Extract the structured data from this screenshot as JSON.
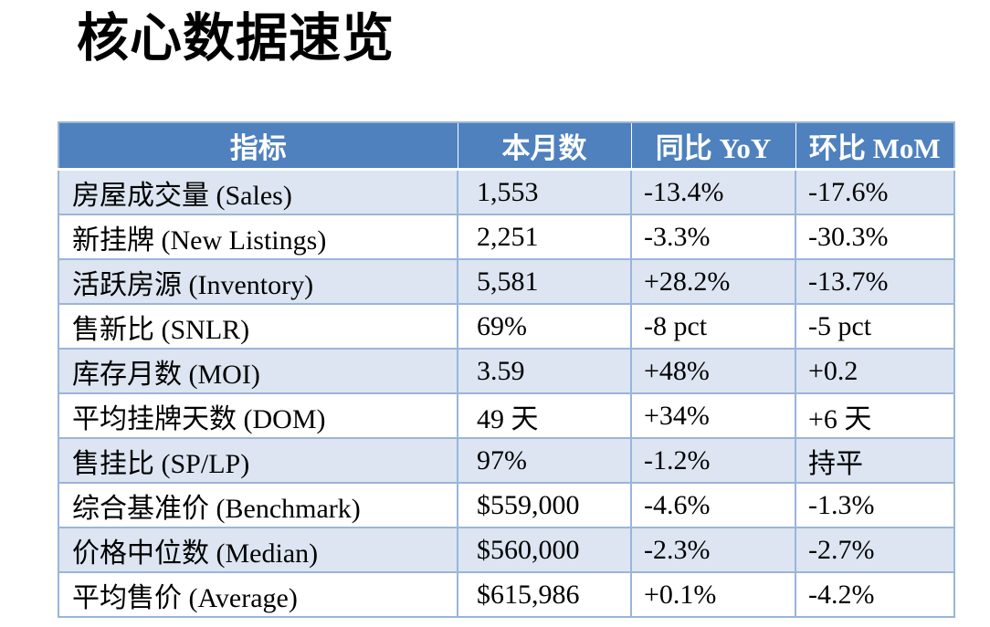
{
  "page": {
    "title": "核心数据速览"
  },
  "colors": {
    "header_bg": "#4E81BD",
    "header_text": "#FFFFFF",
    "band_bg": "#DCE5F1",
    "row_bg": "#FFFFFF",
    "border": "#9AB5DA",
    "text": "#000000"
  },
  "table": {
    "columns": [
      {
        "key": "indicator",
        "label": "指标"
      },
      {
        "key": "current",
        "label": "本月数"
      },
      {
        "key": "yoy",
        "label": "同比 YoY"
      },
      {
        "key": "mom",
        "label": "环比 MoM"
      }
    ],
    "rows": [
      {
        "indicator": "房屋成交量 (Sales)",
        "current": "1,553",
        "yoy": "-13.4%",
        "mom": "-17.6%"
      },
      {
        "indicator": "新挂牌 (New Listings)",
        "current": "2,251",
        "yoy": "-3.3%",
        "mom": "-30.3%"
      },
      {
        "indicator": "活跃房源 (Inventory)",
        "current": "5,581",
        "yoy": "+28.2%",
        "mom": "-13.7%"
      },
      {
        "indicator": "售新比 (SNLR)",
        "current": "69%",
        "yoy": "-8 pct",
        "mom": "-5 pct"
      },
      {
        "indicator": "库存月数 (MOI)",
        "current": "3.59",
        "yoy": "+48%",
        "mom": "+0.2"
      },
      {
        "indicator": "平均挂牌天数 (DOM)",
        "current": "49 天",
        "yoy": "+34%",
        "mom": "+6 天"
      },
      {
        "indicator": "售挂比 (SP/LP)",
        "current": "97%",
        "yoy": "-1.2%",
        "mom": "持平"
      },
      {
        "indicator": "综合基准价 (Benchmark)",
        "current": "$559,000",
        "yoy": "-4.6%",
        "mom": "-1.3%"
      },
      {
        "indicator": "价格中位数 (Median)",
        "current": "$560,000",
        "yoy": "-2.3%",
        "mom": "-2.7%"
      },
      {
        "indicator": "平均售价 (Average)",
        "current": "$615,986",
        "yoy": "+0.1%",
        "mom": "-4.2%"
      }
    ]
  }
}
